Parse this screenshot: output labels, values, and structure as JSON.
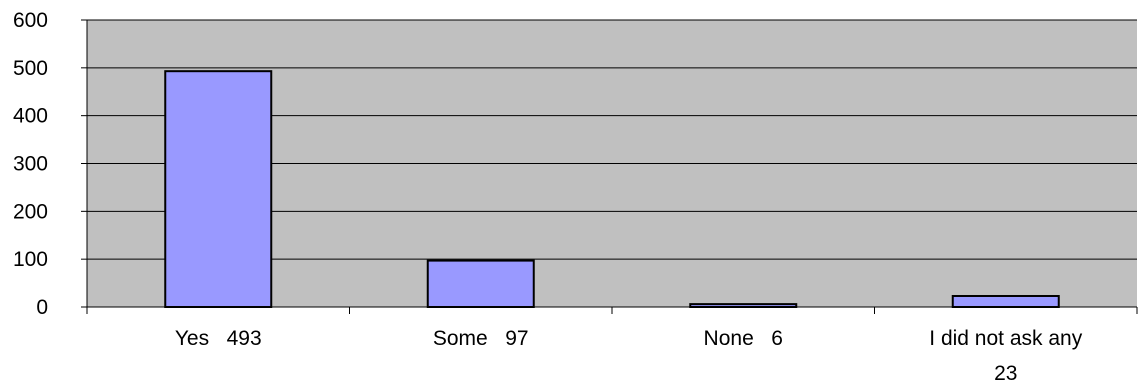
{
  "chart_data": {
    "type": "bar",
    "title": "",
    "xlabel": "",
    "ylabel": "",
    "categories": [
      [
        "Yes",
        "493"
      ],
      [
        "Some",
        "97"
      ],
      [
        "None",
        "6"
      ],
      [
        "I did not ask any",
        "23"
      ]
    ],
    "values": [
      493,
      97,
      6,
      23
    ],
    "ylim": [
      0,
      600
    ],
    "yticks": [
      "0",
      "100",
      "200",
      "300",
      "400",
      "500",
      "600"
    ],
    "grid": true,
    "legend": "none",
    "colors": {
      "plot_background": "#c0c0c0",
      "bar_fill": "#9999ff",
      "bar_stroke": "#000000",
      "gridline": "#000000"
    }
  }
}
